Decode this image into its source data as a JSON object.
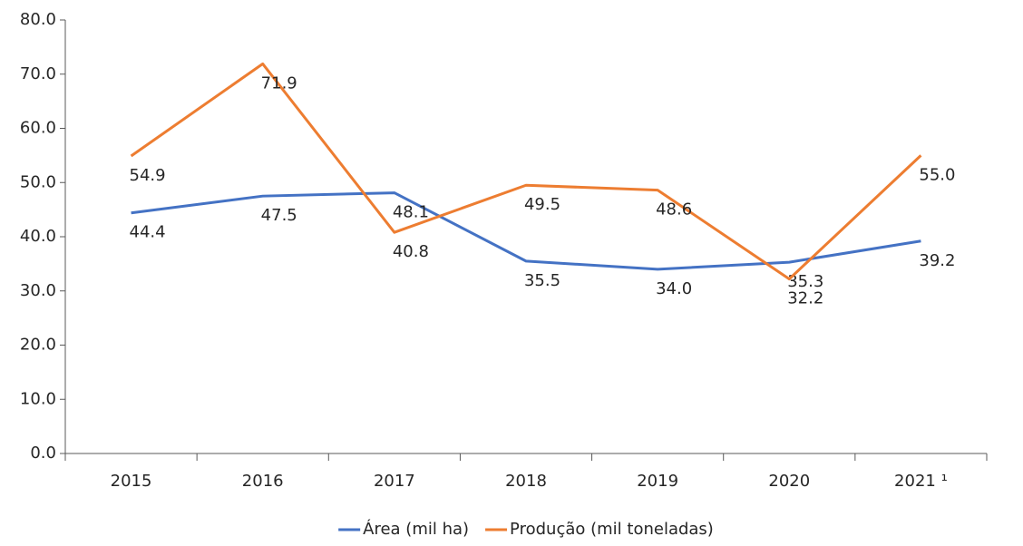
{
  "chart_data": {
    "type": "line",
    "categories": [
      "2015",
      "2016",
      "2017",
      "2018",
      "2019",
      "2020",
      "2021 ¹"
    ],
    "series": [
      {
        "name": "Área (mil ha)",
        "color": "#4472c4",
        "values": [
          44.4,
          47.5,
          48.1,
          35.5,
          34.0,
          35.3,
          39.2
        ],
        "value_labels": [
          "44.4",
          "47.5",
          "48.1",
          "35.5",
          "34.0",
          "35.3",
          "39.2"
        ]
      },
      {
        "name": "Produção (mil toneladas)",
        "color": "#ed7d31",
        "values": [
          54.9,
          71.9,
          40.8,
          49.5,
          48.6,
          32.2,
          55.0
        ],
        "value_labels": [
          "54.9",
          "71.9",
          "40.8",
          "49.5",
          "48.6",
          "32.2",
          "55.0"
        ]
      }
    ],
    "ylim": [
      0,
      80
    ],
    "yticks": [
      {
        "value": 0,
        "label": "0.0"
      },
      {
        "value": 10,
        "label": "10.0"
      },
      {
        "value": 20,
        "label": "20.0"
      },
      {
        "value": 30,
        "label": "30.0"
      },
      {
        "value": 40,
        "label": "40.0"
      },
      {
        "value": 50,
        "label": "50.0"
      },
      {
        "value": 60,
        "label": "60.0"
      },
      {
        "value": 70,
        "label": "70.0"
      },
      {
        "value": 80,
        "label": "80.0"
      }
    ]
  }
}
